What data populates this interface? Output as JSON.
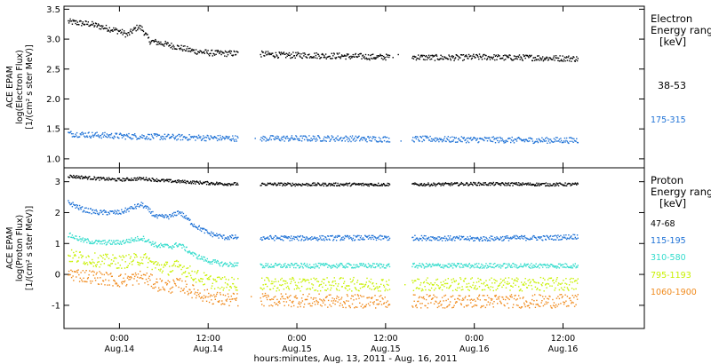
{
  "chart_data": [
    {
      "type": "scatter",
      "panel": "electron",
      "ylabel_lines": [
        "ACE EPAM",
        "log(Electron Flux)",
        "[1/(cm² s ster MeV)]"
      ],
      "ylim": [
        0.85,
        3.55
      ],
      "yticks": [
        1.0,
        1.5,
        2.0,
        2.5,
        3.0,
        3.5
      ],
      "ytick_labels": [
        "1.0",
        "1.5",
        "2.0",
        "2.5",
        "3.0",
        "3.5"
      ],
      "legend_title": [
        "Electron",
        "Energy ranges",
        "[keV]"
      ],
      "series": [
        {
          "name": "38-53",
          "color": "#000000",
          "x": [
            -7,
            -4,
            -2,
            0,
            1,
            2.5,
            3,
            4,
            6,
            8,
            10,
            12,
            14,
            16,
            18,
            19.5,
            22,
            24,
            26,
            28,
            30,
            31,
            33,
            34,
            36,
            38,
            40,
            42,
            44,
            46,
            48,
            50,
            52,
            54,
            56,
            58,
            60,
            62
          ],
          "y": [
            3.3,
            3.26,
            3.2,
            3.14,
            3.08,
            3.22,
            3.18,
            2.98,
            2.93,
            2.87,
            2.81,
            2.78,
            2.77,
            2.77,
            2.76,
            2.76,
            2.74,
            2.74,
            2.74,
            2.73,
            2.73,
            2.72,
            2.72,
            2.71,
            2.71,
            2.72,
            2.71,
            2.7,
            2.7,
            2.7,
            2.71,
            2.71,
            2.7,
            2.7,
            2.7,
            2.69,
            2.69,
            2.68
          ]
        },
        {
          "name": "175-315",
          "color": "#1f72d6",
          "x": [
            -7,
            -4,
            0,
            4,
            8,
            12,
            16,
            19.5,
            22,
            26,
            30,
            34,
            38,
            42,
            46,
            50,
            54,
            58,
            62
          ],
          "y": [
            1.43,
            1.41,
            1.39,
            1.38,
            1.37,
            1.36,
            1.35,
            1.35,
            1.35,
            1.35,
            1.35,
            1.34,
            1.34,
            1.34,
            1.33,
            1.33,
            1.32,
            1.32,
            1.32
          ]
        }
      ]
    },
    {
      "type": "scatter",
      "panel": "proton",
      "ylabel_lines": [
        "ACE EPAM",
        "log(Proton Flux)",
        "[1/(cm² s ster MeV)]"
      ],
      "ylim": [
        -1.75,
        3.45
      ],
      "yticks": [
        -1,
        0,
        1,
        2,
        3
      ],
      "ytick_labels": [
        "-1",
        "0",
        "1",
        "2",
        "3"
      ],
      "legend_title": [
        "Proton",
        "Energy ranges",
        "[keV]"
      ],
      "series": [
        {
          "name": "47-68",
          "color": "#000000",
          "x": [
            -7,
            -3,
            0,
            3,
            6,
            10,
            14,
            19.5,
            24,
            30,
            36,
            42,
            48,
            54,
            58,
            62
          ],
          "y": [
            3.2,
            3.12,
            3.08,
            3.12,
            3.05,
            3.0,
            2.95,
            2.94,
            2.93,
            2.93,
            2.93,
            2.93,
            2.95,
            2.94,
            2.93,
            2.93
          ]
        },
        {
          "name": "115-195",
          "color": "#1f72d6",
          "x": [
            -7,
            -5,
            -3,
            0,
            2,
            3,
            5,
            7,
            8,
            10,
            12,
            14,
            19.5,
            24,
            30,
            36,
            42,
            48,
            54,
            58,
            62
          ],
          "y": [
            2.35,
            2.12,
            2.02,
            2.02,
            2.2,
            2.28,
            1.87,
            1.9,
            2.05,
            1.62,
            1.35,
            1.22,
            1.2,
            1.19,
            1.2,
            1.2,
            1.2,
            1.17,
            1.2,
            1.2,
            1.25
          ]
        },
        {
          "name": "310-580",
          "color": "#33dccc",
          "x": [
            -7,
            -5,
            -3,
            0,
            2,
            3,
            5,
            7,
            8,
            10,
            12,
            14,
            19.5,
            24,
            30,
            36,
            42,
            48,
            54,
            58,
            62
          ],
          "y": [
            1.3,
            1.12,
            1.05,
            1.05,
            1.15,
            1.2,
            0.95,
            0.92,
            1.0,
            0.65,
            0.45,
            0.35,
            0.3,
            0.3,
            0.3,
            0.3,
            0.3,
            0.3,
            0.3,
            0.3,
            0.3
          ]
        },
        {
          "name": "795-1193",
          "color": "#c8f000",
          "x": [
            -7,
            -5,
            -3,
            0,
            2,
            3,
            5,
            7,
            8,
            10,
            12,
            14,
            19.5,
            24,
            30,
            36,
            42,
            48,
            54,
            58,
            62
          ],
          "y": [
            0.62,
            0.55,
            0.48,
            0.42,
            0.48,
            0.55,
            0.28,
            0.2,
            0.3,
            0.0,
            -0.2,
            -0.28,
            -0.3,
            -0.3,
            -0.3,
            -0.3,
            -0.3,
            -0.3,
            -0.3,
            -0.3,
            -0.3
          ]
        },
        {
          "name": "1060-1900",
          "color": "#f08a1c",
          "x": [
            -7,
            -5,
            -3,
            0,
            2,
            3,
            5,
            7,
            8,
            10,
            12,
            14,
            19.5,
            24,
            30,
            36,
            42,
            48,
            54,
            58,
            62
          ],
          "y": [
            0.05,
            -0.02,
            -0.08,
            -0.18,
            -0.12,
            -0.05,
            -0.3,
            -0.38,
            -0.3,
            -0.55,
            -0.7,
            -0.8,
            -0.8,
            -0.82,
            -0.85,
            -0.85,
            -0.85,
            -0.85,
            -0.85,
            -0.85,
            -0.85
          ]
        }
      ]
    }
  ],
  "xaxis": {
    "title": "hours:minutes, Aug. 13, 2011 - Aug. 16, 2011",
    "xlim": [
      -7.5,
      71
    ],
    "data_gaps": [
      [
        16,
        19
      ],
      [
        36.5,
        39.5
      ]
    ],
    "ticks": [
      {
        "x": 0,
        "time": "0:00",
        "date": "Aug.14"
      },
      {
        "x": 12,
        "time": "12:00",
        "date": "Aug.14"
      },
      {
        "x": 24,
        "time": "0:00",
        "date": "Aug.15"
      },
      {
        "x": 36,
        "time": "12:00",
        "date": "Aug.15"
      },
      {
        "x": 48,
        "time": "0:00",
        "date": "Aug.16"
      },
      {
        "x": 60,
        "time": "12:00",
        "date": "Aug.16"
      }
    ]
  }
}
